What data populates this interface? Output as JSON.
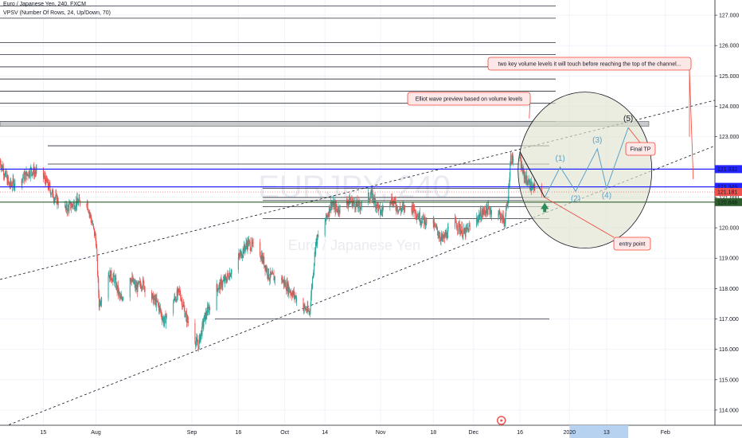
{
  "header": {
    "symbol_line": "Euro / Japanese Yen, 240, FXCM",
    "indicator_line": "VPSV (Number Of Rows, 24, Up/Down, 70)"
  },
  "watermark": {
    "symbol": "EURJPY, 240",
    "name": "Euro / Japanese Yen"
  },
  "colors": {
    "up": "#26a69a",
    "down": "#ef5350",
    "blue_level": "#2424ff",
    "green_level": "#2e5e2e",
    "annotation_border": "#f44336",
    "annotation_fill": "#fde7e7",
    "time_highlight": "#b6d2f0",
    "wave": "#5aa0c8",
    "ellipse_fill": "#dfe3d0"
  },
  "chart_data": {
    "type": "candlestick",
    "title": "Euro / Japanese Yen, 240, FXCM",
    "ylim": [
      113.5,
      127.5
    ],
    "yticks": [
      "127.000",
      "126.000",
      "125.000",
      "124.000",
      "123.000",
      "122.000",
      "121.000",
      "120.000",
      "119.000",
      "118.000",
      "117.000",
      "116.000",
      "115.000",
      "114.000"
    ],
    "xticks": [
      {
        "label": "15",
        "date": "2019-07-15"
      },
      {
        "label": "Aug",
        "date": "2019-08-01"
      },
      {
        "label": "Sep",
        "date": "2019-09-01"
      },
      {
        "label": "16",
        "date": "2019-09-16"
      },
      {
        "label": "Oct",
        "date": "2019-10-01"
      },
      {
        "label": "14",
        "date": "2019-10-14"
      },
      {
        "label": "Nov",
        "date": "2019-11-01"
      },
      {
        "label": "18",
        "date": "2019-11-18"
      },
      {
        "label": "Dec",
        "date": "2019-12-01"
      },
      {
        "label": "16",
        "date": "2019-12-16"
      },
      {
        "label": "2020",
        "date": "2020-01-01"
      },
      {
        "label": "13",
        "date": "2020-01-13"
      },
      {
        "label": "Feb",
        "date": "2020-02-01"
      }
    ],
    "xrange": [
      "2019-07-01",
      "2020-02-17"
    ],
    "close_path": [
      [
        "2019-07-01",
        122.2
      ],
      [
        "2019-07-04",
        121.4
      ],
      [
        "2019-07-08",
        121.6
      ],
      [
        "2019-07-11",
        121.9
      ],
      [
        "2019-07-15",
        121.7
      ],
      [
        "2019-07-18",
        121.1
      ],
      [
        "2019-07-22",
        120.6
      ],
      [
        "2019-07-25",
        120.8
      ],
      [
        "2019-07-29",
        120.9
      ],
      [
        "2019-08-01",
        119.6
      ],
      [
        "2019-08-02",
        117.5
      ],
      [
        "2019-08-05",
        118.5
      ],
      [
        "2019-08-07",
        118.3
      ],
      [
        "2019-08-09",
        117.6
      ],
      [
        "2019-08-12",
        118.4
      ],
      [
        "2019-08-14",
        118.0
      ],
      [
        "2019-08-16",
        118.2
      ],
      [
        "2019-08-19",
        117.7
      ],
      [
        "2019-08-21",
        117.5
      ],
      [
        "2019-08-23",
        116.9
      ],
      [
        "2019-08-26",
        117.6
      ],
      [
        "2019-08-28",
        117.9
      ],
      [
        "2019-08-30",
        117.1
      ],
      [
        "2019-09-03",
        116.1
      ],
      [
        "2019-09-05",
        117.0
      ],
      [
        "2019-09-09",
        118.0
      ],
      [
        "2019-09-12",
        118.3
      ],
      [
        "2019-09-16",
        119.0
      ],
      [
        "2019-09-19",
        119.5
      ],
      [
        "2019-09-23",
        119.2
      ],
      [
        "2019-09-26",
        118.4
      ],
      [
        "2019-09-30",
        118.3
      ],
      [
        "2019-10-03",
        117.9
      ],
      [
        "2019-10-07",
        117.4
      ],
      [
        "2019-10-09",
        117.2
      ],
      [
        "2019-10-11",
        119.5
      ],
      [
        "2019-10-14",
        120.2
      ],
      [
        "2019-10-16",
        120.8
      ],
      [
        "2019-10-18",
        120.6
      ],
      [
        "2019-10-22",
        120.9
      ],
      [
        "2019-10-25",
        120.7
      ],
      [
        "2019-10-29",
        121.1
      ],
      [
        "2019-11-01",
        120.5
      ],
      [
        "2019-11-04",
        121.0
      ],
      [
        "2019-11-07",
        120.6
      ],
      [
        "2019-11-11",
        120.7
      ],
      [
        "2019-11-14",
        120.3
      ],
      [
        "2019-11-18",
        120.1
      ],
      [
        "2019-11-21",
        119.6
      ],
      [
        "2019-11-25",
        120.2
      ],
      [
        "2019-11-28",
        119.8
      ],
      [
        "2019-12-02",
        120.3
      ],
      [
        "2019-12-05",
        120.6
      ],
      [
        "2019-12-09",
        120.5
      ],
      [
        "2019-12-11",
        120.2
      ],
      [
        "2019-12-12",
        120.8
      ],
      [
        "2019-12-13",
        122.3
      ],
      [
        "2019-12-16",
        122.2
      ],
      [
        "2019-12-17",
        121.8
      ],
      [
        "2019-12-18",
        121.6
      ],
      [
        "2019-12-20",
        121.3
      ],
      [
        "2019-12-23",
        121.2
      ]
    ],
    "price_labels": [
      {
        "value": 121.932,
        "text": "121.932",
        "color": "#2424ff"
      },
      {
        "value": 121.349,
        "text": "121.349",
        "color": "#2424ff"
      },
      {
        "value": 121.181,
        "text": "121.181",
        "color": "#ef5350"
      },
      {
        "value": 120.846,
        "text": "120.846",
        "color": "#2e5e2e"
      }
    ],
    "horizontal_levels": [
      {
        "value": 121.932,
        "color": "#2424ff",
        "style": "solid"
      },
      {
        "value": 121.349,
        "color": "#2424ff",
        "style": "solid"
      },
      {
        "value": 120.846,
        "color": "#2e5e2e",
        "style": "solid"
      }
    ],
    "volume_profile_levels": [
      127.3,
      126.9,
      126.1,
      125.7,
      125.3,
      124.9,
      124.5,
      124.1,
      123.5,
      123.4,
      122.7,
      122.1,
      121.3,
      121.0,
      120.9,
      120.7,
      120.3,
      117.0
    ],
    "trend_channel": {
      "upper": [
        [
          "2019-07-01",
          118.3
        ],
        [
          "2020-02-17",
          124.2
        ]
      ],
      "lower": [
        [
          "2019-07-01",
          113.4
        ],
        [
          "2020-02-17",
          122.7
        ]
      ]
    },
    "wave_labels": [
      "(1)",
      "(2)",
      "(3)",
      "(4)",
      "(5)"
    ],
    "wave_path": [
      [
        "2019-12-24",
        121.0
      ],
      [
        "2019-12-29",
        122.0
      ],
      [
        "2020-01-03",
        121.2
      ],
      [
        "2020-01-10",
        122.6
      ],
      [
        "2020-01-13",
        121.3
      ],
      [
        "2020-01-20",
        123.3
      ]
    ],
    "annotations": [
      {
        "text": "two key volume levels it will touch before reaching the top of the channel...",
        "id": "volume-note"
      },
      {
        "text": "Elliot wave preview based on volume levels",
        "id": "elliot-note"
      },
      {
        "text": "Final TP",
        "id": "final-tp"
      },
      {
        "text": "entry point",
        "id": "entry-point"
      }
    ],
    "time_highlight_label": "2020"
  }
}
